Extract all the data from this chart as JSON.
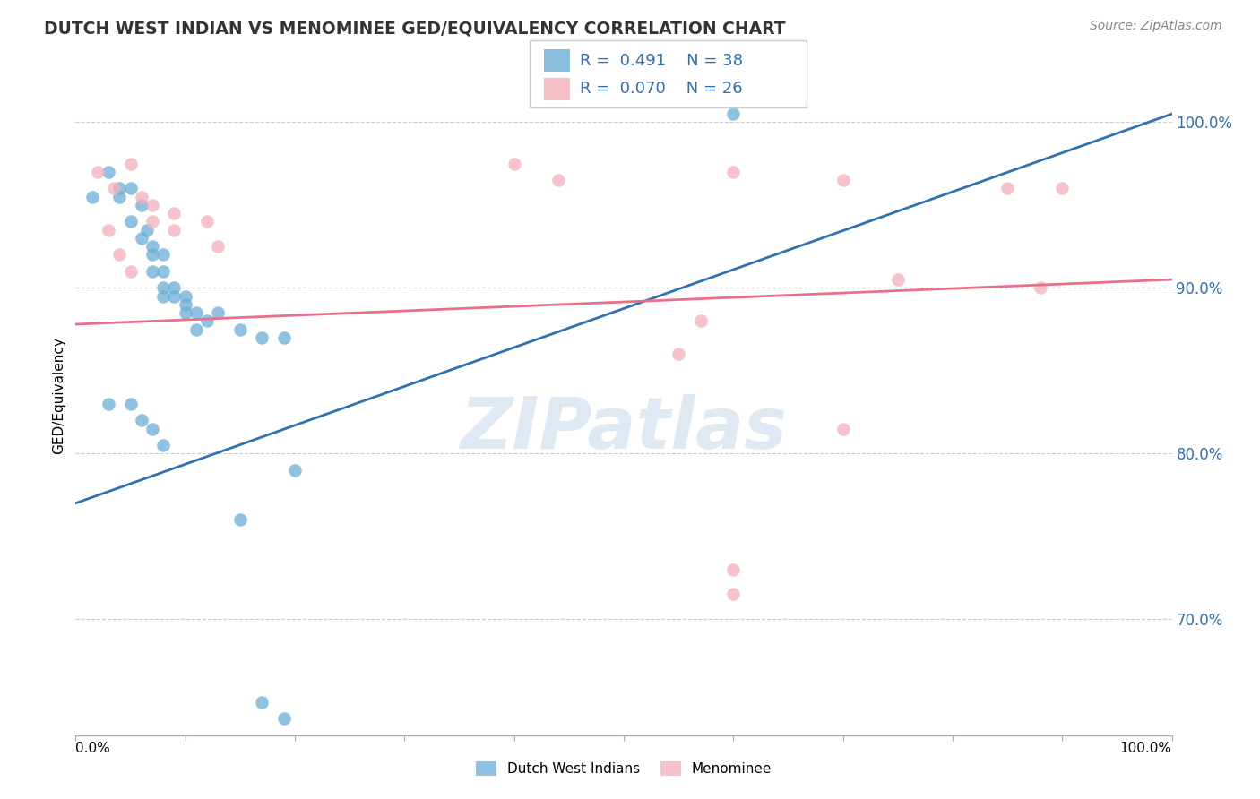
{
  "title": "DUTCH WEST INDIAN VS MENOMINEE GED/EQUIVALENCY CORRELATION CHART",
  "source": "Source: ZipAtlas.com",
  "ylabel": "GED/Equivalency",
  "legend_label1": "Dutch West Indians",
  "legend_label2": "Menominee",
  "r1": "0.491",
  "n1": "38",
  "r2": "0.070",
  "n2": "26",
  "xmin": 0.0,
  "xmax": 1.0,
  "ymin": 0.63,
  "ymax": 1.04,
  "yticks": [
    0.7,
    0.8,
    0.9,
    1.0
  ],
  "ytick_labels": [
    "70.0%",
    "80.0%",
    "90.0%",
    "100.0%"
  ],
  "blue_color": "#6AAED6",
  "pink_color": "#F4AFBB",
  "blue_line_color": "#3070B3",
  "pink_line_color": "#E8708A",
  "watermark_text": "ZIPatlas",
  "blue_scatter": [
    [
      0.015,
      0.955
    ],
    [
      0.03,
      0.97
    ],
    [
      0.04,
      0.96
    ],
    [
      0.04,
      0.955
    ],
    [
      0.05,
      0.96
    ],
    [
      0.05,
      0.94
    ],
    [
      0.06,
      0.95
    ],
    [
      0.06,
      0.93
    ],
    [
      0.065,
      0.935
    ],
    [
      0.07,
      0.925
    ],
    [
      0.07,
      0.92
    ],
    [
      0.07,
      0.91
    ],
    [
      0.08,
      0.92
    ],
    [
      0.08,
      0.91
    ],
    [
      0.08,
      0.9
    ],
    [
      0.08,
      0.895
    ],
    [
      0.09,
      0.9
    ],
    [
      0.09,
      0.895
    ],
    [
      0.1,
      0.895
    ],
    [
      0.1,
      0.89
    ],
    [
      0.1,
      0.885
    ],
    [
      0.11,
      0.885
    ],
    [
      0.11,
      0.875
    ],
    [
      0.12,
      0.88
    ],
    [
      0.13,
      0.885
    ],
    [
      0.15,
      0.875
    ],
    [
      0.17,
      0.87
    ],
    [
      0.19,
      0.87
    ],
    [
      0.03,
      0.83
    ],
    [
      0.05,
      0.83
    ],
    [
      0.06,
      0.82
    ],
    [
      0.07,
      0.815
    ],
    [
      0.08,
      0.805
    ],
    [
      0.2,
      0.79
    ],
    [
      0.17,
      0.65
    ],
    [
      0.19,
      0.64
    ],
    [
      0.6,
      1.005
    ],
    [
      0.15,
      0.76
    ]
  ],
  "pink_scatter": [
    [
      0.02,
      0.97
    ],
    [
      0.05,
      0.975
    ],
    [
      0.4,
      0.975
    ],
    [
      0.44,
      0.965
    ],
    [
      0.6,
      0.97
    ],
    [
      0.7,
      0.965
    ],
    [
      0.85,
      0.96
    ],
    [
      0.035,
      0.96
    ],
    [
      0.06,
      0.955
    ],
    [
      0.07,
      0.95
    ],
    [
      0.07,
      0.94
    ],
    [
      0.09,
      0.945
    ],
    [
      0.09,
      0.935
    ],
    [
      0.12,
      0.94
    ],
    [
      0.13,
      0.925
    ],
    [
      0.04,
      0.92
    ],
    [
      0.05,
      0.91
    ],
    [
      0.75,
      0.905
    ],
    [
      0.88,
      0.9
    ],
    [
      0.57,
      0.88
    ],
    [
      0.7,
      0.815
    ],
    [
      0.6,
      0.73
    ],
    [
      0.6,
      0.715
    ],
    [
      0.55,
      0.86
    ],
    [
      0.9,
      0.96
    ],
    [
      0.03,
      0.935
    ]
  ],
  "blue_trendline": [
    [
      0.0,
      0.77
    ],
    [
      1.0,
      1.005
    ]
  ],
  "pink_trendline": [
    [
      0.0,
      0.878
    ],
    [
      1.0,
      0.905
    ]
  ]
}
